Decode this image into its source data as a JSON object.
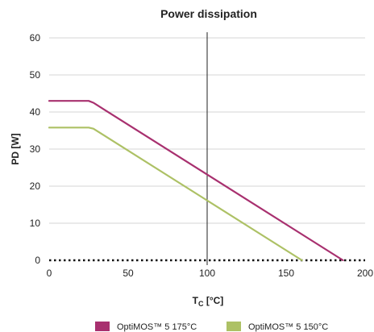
{
  "chart_data": {
    "type": "line",
    "title": "Power dissipation",
    "xlabel_main": "T",
    "xlabel_sub": "C",
    "xlabel_unit": " [°C]",
    "ylabel": "PD [W]",
    "xlim": [
      0,
      200
    ],
    "ylim": [
      0,
      60
    ],
    "xticks": [
      0,
      50,
      100,
      150,
      200
    ],
    "yticks": [
      0,
      10,
      20,
      30,
      40,
      50,
      60
    ],
    "grid": "horizontal",
    "legend_position": "bottom",
    "vertical_marker_x": 100,
    "series": [
      {
        "name": "OptiMOS™ 5 175°C",
        "color": "#a8306f",
        "x": [
          0,
          25,
          28,
          186
        ],
        "y": [
          43,
          43,
          42.5,
          0
        ]
      },
      {
        "name": "OptiMOS™ 5 150°C",
        "color": "#adc165",
        "x": [
          0,
          25,
          28,
          160
        ],
        "y": [
          35.8,
          35.8,
          35.5,
          0
        ]
      }
    ]
  }
}
